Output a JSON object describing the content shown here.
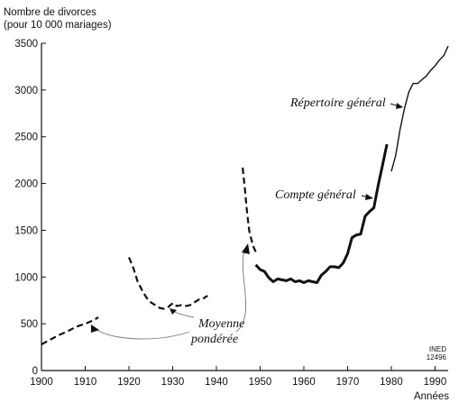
{
  "chart_data": {
    "type": "line",
    "title": "",
    "ylabel_line1": "Nombre de divorces",
    "ylabel_line2": "(pour 10 000 mariages)",
    "xlabel": "Années",
    "xlim": [
      1900,
      1993
    ],
    "ylim": [
      0,
      3500
    ],
    "x_ticks": [
      1900,
      1910,
      1920,
      1930,
      1940,
      1950,
      1960,
      1970,
      1980,
      1990
    ],
    "y_ticks": [
      0,
      500,
      1000,
      1500,
      2000,
      2500,
      3000,
      3500
    ],
    "grid": false,
    "series": [
      {
        "name": "Moyenne pondérée",
        "style": "dashed",
        "segments": [
          {
            "x": [
              1900,
              1902,
              1904,
              1906,
              1908,
              1910,
              1912,
              1913
            ],
            "y": [
              280,
              330,
              380,
              420,
              470,
              500,
              540,
              570
            ]
          },
          {
            "x": [
              1920,
              1921,
              1922,
              1923,
              1924,
              1925,
              1926,
              1927,
              1928,
              1929,
              1930,
              1931,
              1932,
              1933,
              1934,
              1935,
              1936,
              1937,
              1938
            ],
            "y": [
              1210,
              1100,
              950,
              860,
              780,
              730,
              700,
              670,
              660,
              680,
              720,
              690,
              700,
              690,
              700,
              730,
              760,
              770,
              800
            ]
          },
          {
            "x": [
              1946,
              1946.5,
              1947,
              1947.5,
              1948,
              1948.5,
              1949
            ],
            "y": [
              2170,
              1950,
              1700,
              1500,
              1400,
              1320,
              1270
            ]
          }
        ]
      },
      {
        "name": "Compte général",
        "style": "solid-thick",
        "segments": [
          {
            "x": [
              1949,
              1950,
              1951,
              1952,
              1953,
              1954,
              1955,
              1956,
              1957,
              1958,
              1959,
              1960,
              1961,
              1962,
              1963,
              1964,
              1965,
              1966,
              1967,
              1968,
              1969,
              1970,
              1971,
              1972,
              1973,
              1974,
              1975,
              1976,
              1977,
              1978,
              1979
            ],
            "y": [
              1130,
              1080,
              1060,
              990,
              950,
              980,
              970,
              960,
              980,
              950,
              960,
              940,
              960,
              950,
              940,
              1020,
              1060,
              1110,
              1110,
              1100,
              1150,
              1250,
              1420,
              1450,
              1460,
              1650,
              1700,
              1740,
              1980,
              2200,
              2420
            ]
          }
        ]
      },
      {
        "name": "Répertoire général",
        "style": "solid-thin",
        "segments": [
          {
            "x": [
              1980,
              1981,
              1982,
              1983,
              1984,
              1985,
              1986,
              1987,
              1988,
              1989,
              1990,
              1991,
              1992,
              1993
            ],
            "y": [
              2130,
              2300,
              2580,
              2800,
              2980,
              3070,
              3070,
              3110,
              3150,
              3210,
              3260,
              3320,
              3370,
              3470
            ]
          }
        ]
      }
    ],
    "annotations": {
      "repertoire": "Répertoire général",
      "compte": "Compte général",
      "moyenne_line1": "Moyenne",
      "moyenne_line2": "pondérée"
    },
    "credit_line1": "INED",
    "credit_line2": "12496"
  }
}
